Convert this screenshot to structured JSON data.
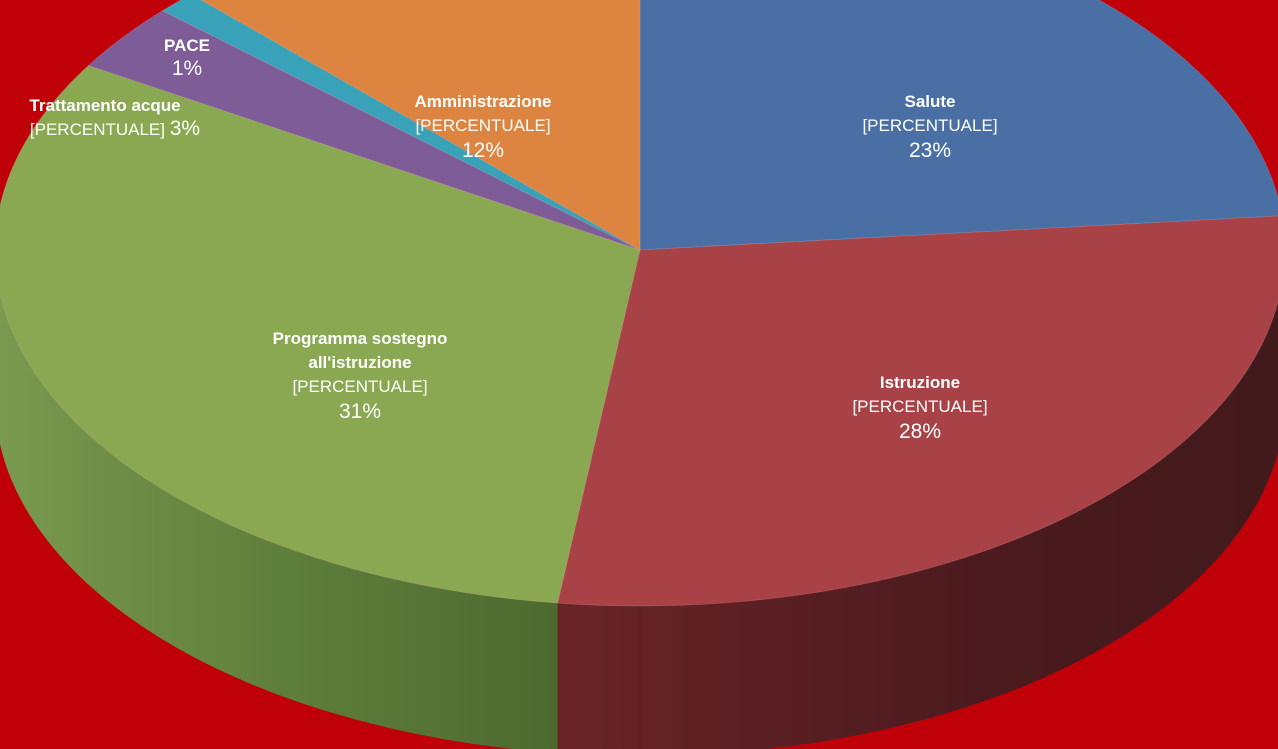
{
  "chart_data": {
    "type": "pie",
    "title": "",
    "slices": [
      {
        "label": "Salute",
        "placeholder": "[PERCENTUALE]",
        "value": 23,
        "value_text": "23%",
        "color": "#4a6fa5"
      },
      {
        "label": "Istruzione",
        "placeholder": "[PERCENTUALE]",
        "value": 28,
        "value_text": "28%",
        "color": "#a84246"
      },
      {
        "label": "Programma sostegno all'istruzione",
        "label_lines": [
          "Programma sostegno",
          "all'istruzione"
        ],
        "placeholder": "[PERCENTUALE]",
        "value": 31,
        "value_text": "31%",
        "color": "#8aa852"
      },
      {
        "label": "Trattamento acque",
        "placeholder": "[PERCENTUALE]",
        "value": 3,
        "value_text": "3%",
        "color": "#7e5c98"
      },
      {
        "label": "PACE",
        "placeholder": "",
        "value": 1,
        "value_text": "1%",
        "color": "#3aa2b8"
      },
      {
        "label": "Amministrazione",
        "placeholder": "[PERCENTUALE]",
        "value": 12,
        "value_text": "12%",
        "color": "#dd8440"
      }
    ],
    "background_color": "#c00008",
    "legend": "none",
    "style": "3d-perspective"
  }
}
